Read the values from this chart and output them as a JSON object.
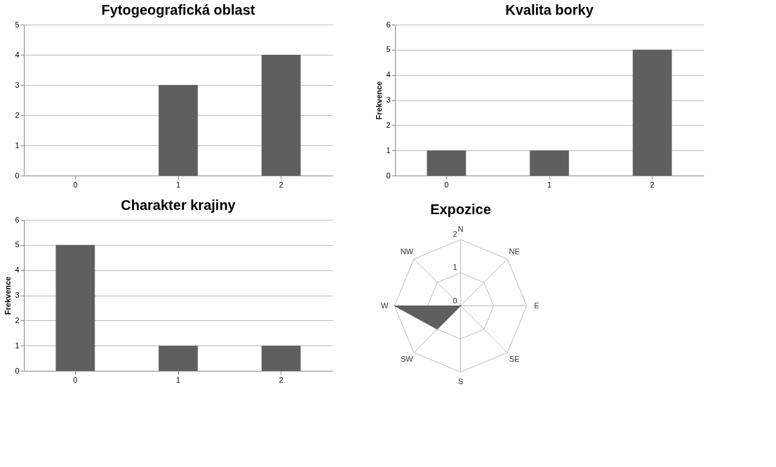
{
  "chart_data": [
    {
      "type": "bar",
      "title": "Fytogeografická oblast",
      "categories": [
        "0",
        "1",
        "2"
      ],
      "values": [
        0,
        3,
        4
      ],
      "color": "#5f5f5f",
      "ylim": [
        0,
        5
      ],
      "yticks": [
        0,
        1,
        2,
        3,
        4,
        5
      ],
      "grid": "y"
    },
    {
      "type": "bar",
      "title": "Kvalita borky",
      "ylabel": "Frekvence",
      "categories": [
        "0",
        "1",
        "2"
      ],
      "values": [
        1,
        1,
        5
      ],
      "color": "#5f5f5f",
      "ylim": [
        0,
        6
      ],
      "yticks": [
        0,
        1,
        2,
        3,
        4,
        5,
        6
      ],
      "grid": "y"
    },
    {
      "type": "bar",
      "title": "Charakter krajiny",
      "ylabel": "Frekvence",
      "categories": [
        "0",
        "1",
        "2"
      ],
      "values": [
        5,
        1,
        1
      ],
      "color": "#5f5f5f",
      "ylim": [
        0,
        6
      ],
      "yticks": [
        0,
        1,
        2,
        3,
        4,
        5,
        6
      ],
      "grid": "y"
    },
    {
      "type": "radar",
      "title": "Expozice",
      "categories": [
        "N",
        "NE",
        "E",
        "SE",
        "S",
        "SW",
        "W",
        "NW"
      ],
      "series": [
        {
          "color": "#5f5f5f",
          "values": [
            0,
            0,
            0,
            0,
            0,
            1,
            2,
            0
          ]
        }
      ],
      "ylim": [
        0,
        2
      ],
      "yticks": [
        0,
        1,
        2
      ],
      "grid": true
    }
  ]
}
